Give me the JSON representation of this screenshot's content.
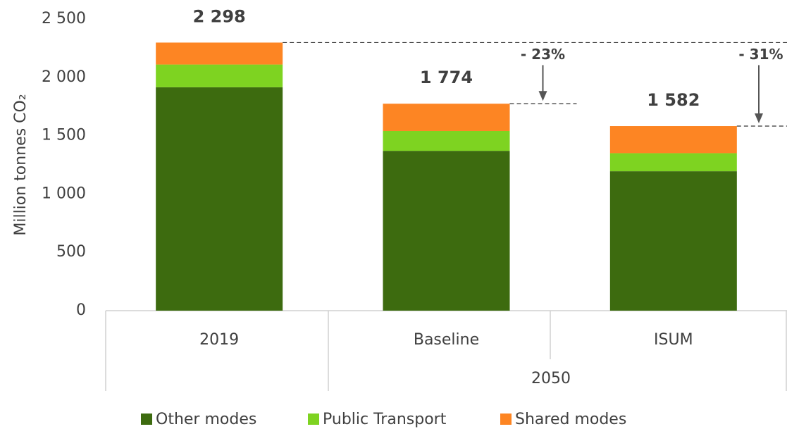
{
  "chart_data": {
    "type": "stacked_bar",
    "y_axis_label": "Million tonnes CO₂",
    "categories": [
      "2019",
      "Baseline",
      "ISUM"
    ],
    "category_groups": [
      {
        "label": "2050",
        "categories": [
          "Baseline",
          "ISUM"
        ]
      }
    ],
    "series": [
      {
        "name": "Other modes",
        "color": "#3d6b0f",
        "values": [
          1915,
          1370,
          1195
        ]
      },
      {
        "name": "Public Transport",
        "color": "#7ed321",
        "values": [
          195,
          170,
          155
        ]
      },
      {
        "name": "Shared modes",
        "color": "#fd8523",
        "values": [
          188,
          234,
          232
        ]
      }
    ],
    "totals": [
      2298,
      1774,
      1582
    ],
    "total_labels": [
      "2 298",
      "1 774",
      "1 582"
    ],
    "annotations": [
      "- 23%",
      "- 31%"
    ],
    "ylim": [
      0,
      2500
    ],
    "yticks": [
      0,
      500,
      {
        "value": 1000,
        "label": "1 000"
      },
      {
        "value": 1500,
        "label": "1 500"
      },
      {
        "value": 2000,
        "label": "2 000"
      },
      {
        "value": 2500,
        "label": "2 500"
      }
    ],
    "grid": false,
    "legend": "bottom"
  }
}
